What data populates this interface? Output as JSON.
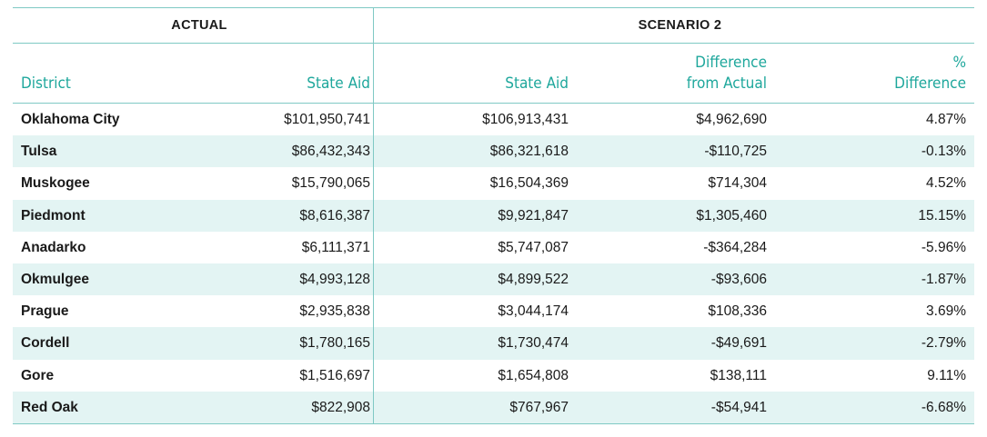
{
  "groups": {
    "actual": "ACTUAL",
    "scenario": "SCENARIO 2"
  },
  "headers": {
    "district": "District",
    "actual_state_aid": "State Aid",
    "scenario_state_aid": "State Aid",
    "difference_line1": "Difference",
    "difference_line2": "from Actual",
    "pct_line1": "%",
    "pct_line2": "Difference"
  },
  "rows": [
    {
      "district": "Oklahoma City",
      "actual": "$101,950,741",
      "scenario": "$106,913,431",
      "diff": "$4,962,690",
      "pct": "4.87%"
    },
    {
      "district": "Tulsa",
      "actual": "$86,432,343",
      "scenario": "$86,321,618",
      "diff": "-$110,725",
      "pct": "-0.13%"
    },
    {
      "district": "Muskogee",
      "actual": "$15,790,065",
      "scenario": "$16,504,369",
      "diff": "$714,304",
      "pct": "4.52%"
    },
    {
      "district": "Piedmont",
      "actual": "$8,616,387",
      "scenario": "$9,921,847",
      "diff": "$1,305,460",
      "pct": "15.15%"
    },
    {
      "district": "Anadarko",
      "actual": "$6,111,371",
      "scenario": "$5,747,087",
      "diff": "-$364,284",
      "pct": "-5.96%"
    },
    {
      "district": "Okmulgee",
      "actual": "$4,993,128",
      "scenario": "$4,899,522",
      "diff": "-$93,606",
      "pct": "-1.87%"
    },
    {
      "district": "Prague",
      "actual": "$2,935,838",
      "scenario": "$3,044,174",
      "diff": "$108,336",
      "pct": "3.69%"
    },
    {
      "district": "Cordell",
      "actual": "$1,780,165",
      "scenario": "$1,730,474",
      "diff": "-$49,691",
      "pct": "-2.79%"
    },
    {
      "district": "Gore",
      "actual": "$1,516,697",
      "scenario": "$1,654,808",
      "diff": "$138,111",
      "pct": "9.11%"
    },
    {
      "district": "Red Oak",
      "actual": "$822,908",
      "scenario": "$767,967",
      "diff": "-$54,941",
      "pct": "-6.68%"
    }
  ],
  "colors": {
    "accent": "#1ea79c",
    "rule": "#7fc9c4",
    "band": "#e3f4f3"
  }
}
